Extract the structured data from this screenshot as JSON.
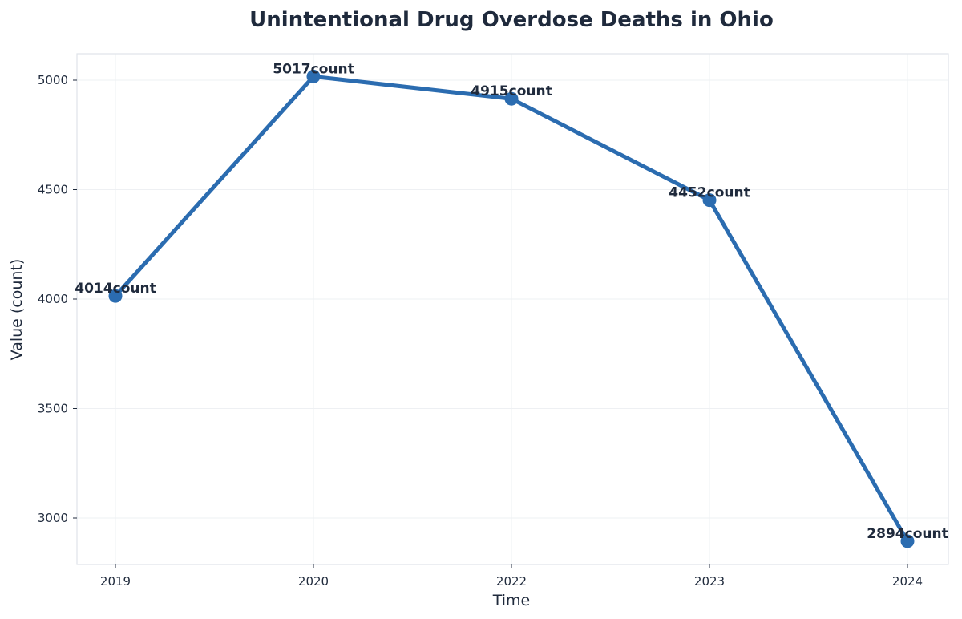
{
  "chart_data": {
    "type": "line",
    "title": "Unintentional Drug Overdose Deaths in Ohio",
    "xlabel": "Time",
    "ylabel": "Value (count)",
    "categories": [
      "2019",
      "2020",
      "2022",
      "2023",
      "2024"
    ],
    "series": [
      {
        "values": [
          4014,
          5017,
          4915,
          4452,
          2894
        ],
        "data_labels": [
          "4014count",
          "5017count",
          "4915count",
          "4452count",
          "2894count"
        ]
      }
    ],
    "ylim": [
      2800,
      5125
    ],
    "yticks": [
      3000,
      3500,
      4000,
      4500,
      5000
    ],
    "ytick_labels": [
      "3000",
      "3500",
      "4000",
      "4500",
      "5000"
    ],
    "grid": true,
    "legend": "none"
  },
  "colors": {
    "line": "#2b6cb0",
    "marker": "#2b6cb0",
    "text": "#1f2a3c",
    "grid": "#eef0f3",
    "frame": "#dfe3e8",
    "background": "#ffffff"
  }
}
